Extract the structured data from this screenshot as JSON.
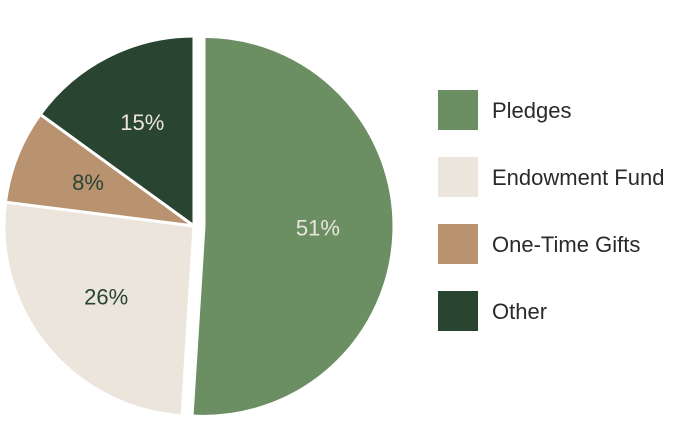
{
  "chart_data": {
    "type": "pie",
    "categories": [
      "Pledges",
      "Endowment Fund",
      "One-Time Gifts",
      "Other"
    ],
    "values": [
      51,
      26,
      8,
      15
    ],
    "labels": [
      "51%",
      "26%",
      "8%",
      "15%"
    ],
    "colors": [
      "#6b8e63",
      "#ebe5dc",
      "#b99270",
      "#294431"
    ],
    "label_colors": [
      "#ebe5dc",
      "#294431",
      "#294431",
      "#ebe5dc"
    ],
    "exploded": "Pledges",
    "legend": {
      "position": "right"
    },
    "title": ""
  }
}
